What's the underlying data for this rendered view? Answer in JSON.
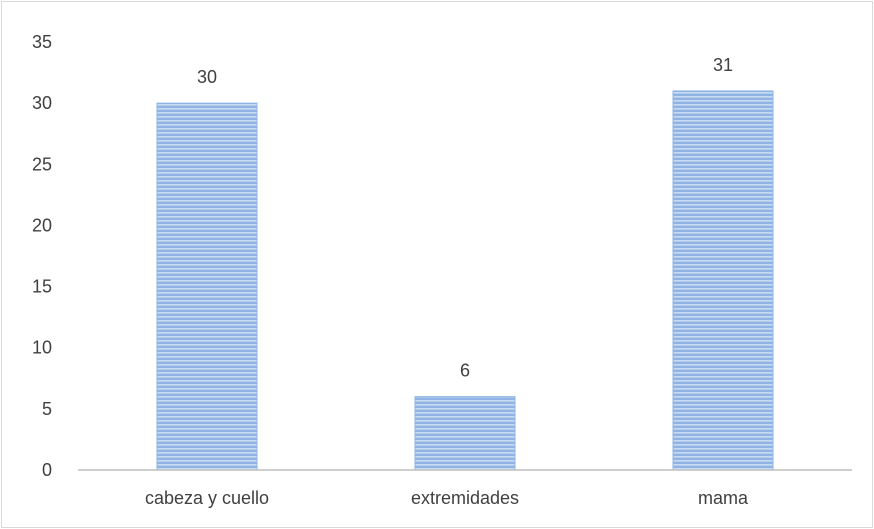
{
  "chart_data": {
    "type": "bar",
    "categories": [
      "cabeza y cuello",
      "extremidades",
      "mama"
    ],
    "values": [
      30,
      6,
      31
    ],
    "data_labels": [
      "30",
      "6",
      "31"
    ],
    "title": "",
    "xlabel": "",
    "ylabel": "",
    "ylim": [
      0,
      35
    ],
    "yticks": [
      0,
      5,
      10,
      15,
      20,
      25,
      30,
      35
    ],
    "ytick_labels": [
      "0",
      "5",
      "10",
      "15",
      "20",
      "25",
      "30",
      "35"
    ],
    "grid": false,
    "legend": "none",
    "bar_color": "#8fb4e3",
    "bar_stripe_color": "#c9dbf2",
    "axis_color": "#bfbfbf",
    "text_color": "#404040"
  }
}
